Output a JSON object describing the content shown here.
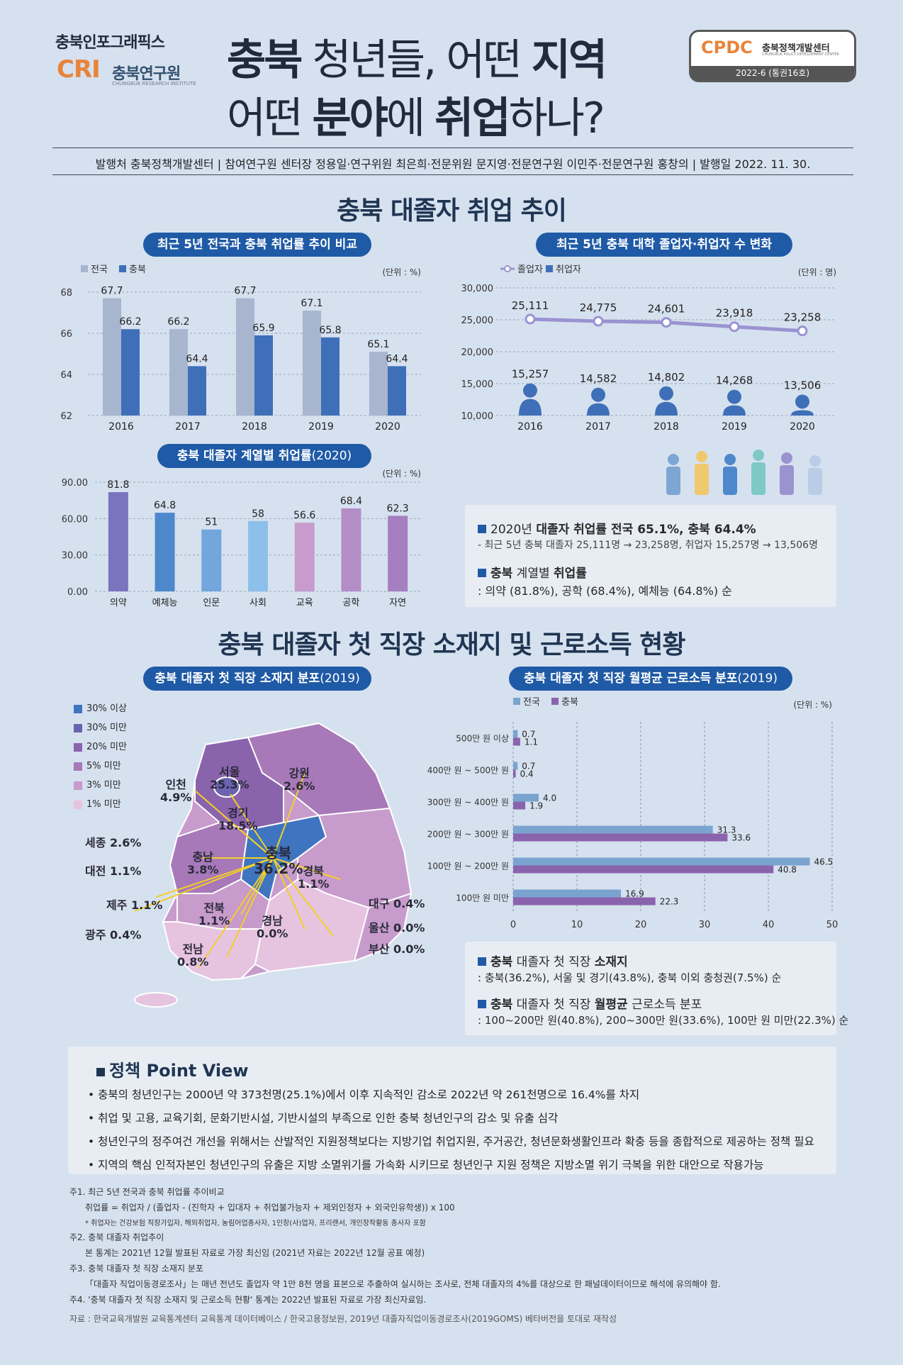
{
  "header": {
    "brand_top": "충북인포그래픽스",
    "brand_cri": "CRI",
    "brand_name": "충북연구원",
    "brand_sub": "CHUNGBUK RESEARCH INSTITUTE",
    "title_line1_a": "충북",
    "title_line1_b": " 청년들, 어떤 ",
    "title_line1_c": "지역",
    "title_line2_a": "어떤 ",
    "title_line2_b": "분야",
    "title_line2_c": "에 ",
    "title_line2_d": "취업",
    "title_line2_e": "하나?",
    "logo_cpdc": "CPDC",
    "logo_name": "충북정책개발센터",
    "logo_sub": "CHUNGBUK POLICY DEVELOPMENT CENTER",
    "logo_issue": "2022-6 (통권16호)",
    "pub_info": "발행처 충북정책개발센터 | 참여연구원 센터장 정용일·연구위원 최은희·전문위원 문지영·전문연구원 이민주·전문연구원 홍창의 | 발행일 2022. 11. 30."
  },
  "section1": {
    "title": "충북 대졸자 취업 추이",
    "chart1_title": "최근 5년 전국과 충북 취업률 추이 비교",
    "chart2_title": "최근 5년 충북 대학 졸업자·취업자 수 변화",
    "chart3_title": "충북 대졸자 계열별 취업률",
    "chart3_year": "(2020)",
    "summary": {
      "line1_a": "2020년 ",
      "line1_b": "대졸자 취업률 전국 65.1%, 충북 64.4%",
      "line2": "- 최근 5년 충북 대졸자 25,111명 → 23,258명, 취업자 15,257명 → 13,506명",
      "line3_a": "충북",
      "line3_b": " 계열별 ",
      "line3_c": "취업률",
      "line4": ": 의약 (81.8%), 공학 (68.4%), 예체능 (64.8%) 순"
    }
  },
  "section2": {
    "title": "충북 대졸자 첫 직장 소재지 및 근로소득 현황",
    "map_title": "충북 대졸자 첫 직장 소재지 분포",
    "map_year": "(2019)",
    "chart4_title": "충북 대졸자 첫 직장 월평균 근로소득 분포",
    "chart4_year": "(2019)",
    "map_legend": [
      "30% 이상",
      "30% 미만",
      "20% 미만",
      "5% 미만",
      "3% 미만",
      "1% 미만"
    ],
    "map_legend_colors": [
      "#3f74c0",
      "#6a63b0",
      "#8a63ad",
      "#a779b8",
      "#c79bcb",
      "#e6c4e0"
    ],
    "map_labels": [
      {
        "name": "서울",
        "value": "25.3%"
      },
      {
        "name": "인천",
        "value": "4.9%"
      },
      {
        "name": "강원",
        "value": "2.6%"
      },
      {
        "name": "경기",
        "value": "18.5%"
      },
      {
        "name": "세종",
        "value": "2.6%"
      },
      {
        "name": "충남",
        "value": "3.8%"
      },
      {
        "name": "충북",
        "value": "36.2%"
      },
      {
        "name": "대전",
        "value": "1.1%"
      },
      {
        "name": "경북",
        "value": "1.1%"
      },
      {
        "name": "제주",
        "value": "1.1%"
      },
      {
        "name": "전북",
        "value": "1.1%"
      },
      {
        "name": "대구",
        "value": "0.4%"
      },
      {
        "name": "울산",
        "value": "0.0%"
      },
      {
        "name": "광주",
        "value": "0.4%"
      },
      {
        "name": "경남",
        "value": "0.0%"
      },
      {
        "name": "부산",
        "value": "0.0%"
      },
      {
        "name": "전남",
        "value": "0.8%"
      }
    ],
    "summary": {
      "line1_a": "충북",
      "line1_b": " 대졸자 첫 직장 ",
      "line1_c": "소재지",
      "line2": ": 충북(36.2%), 서울 및 경기(43.8%), 충북 이외 충청권(7.5%) 순",
      "line3_a": "충북",
      "line3_b": " 대졸자 첫 직장 ",
      "line3_c": "월평균",
      "line3_d": " 근로소득 분포",
      "line4": ": 100~200만 원(40.8%), 200~300만 원(33.6%), 100만 원 미만(22.3%) 순"
    }
  },
  "policy": {
    "title": "정책 Point View",
    "items": [
      "충북의 청년인구는 2000년 약 373천명(25.1%)에서 이후 지속적인 감소로 2022년 약 261천명으로 16.4%를 차지",
      "취업 및 고용, 교육기회, 문화기반시설, 기반시설의 부족으로 인한 충북 청년인구의 감소 및 유출 심각",
      "청년인구의 정주여건 개선을 위해서는 산발적인 지원정책보다는 지방기업 취업지원, 주거공간, 청년문화생활인프라 확충 등을 종합적으로 제공하는 정책 필요",
      "지역의 핵심 인적자본인 청년인구의 유출은 지방 소멸위기를 가속화 시키므로 청년인구 지원 정책은 지방소멸 위기 극복을 위한 대안으로 작용가능"
    ]
  },
  "notes": [
    "주1. 최근 5년 전국과 충북 취업률 추이비교",
    "취업률 = 취업자 / (졸업자 - (진학자 + 입대자 + 취업불가능자 + 제외인정자 + 외국인유학생)) x 100",
    "* 취업자는 건강보험 직장가입자, 해외취업자, 농림어업종사자, 1인창(사)업자, 프리랜서, 개인창작활동 종사자 포함",
    "주2. 충북 대졸자 취업추이",
    "본 통계는 2021년 12월 발표된 자료로 가장 최신임 (2021년 자료는 2022년 12월 공표 예정)",
    "주3. 충북 대졸자 첫 직장 소재지 분포",
    "「대졸자 직업이동경로조사」는 매년 전년도 졸업자 약 1만 8천 명을 표본으로 추출하여 실시하는 조사로, 전체 대졸자의 4%를 대상으로 한 패널데이터이므로 해석에 유의해야 함.",
    "주4. '충북 대졸자 첫 직장 소재지 및 근로소득 현황' 통계는 2022년 발표된 자료로 가장 최신자료임.",
    "자료 : 한국교육개발원 교육통계센터 교육통계 데이터베이스 / 한국고용정보원, 2019년 대졸자직업이동경로조사(2019GOMS) 베타버전을 토대로 재작성"
  ],
  "chart_data": [
    {
      "type": "bar",
      "title": "최근 5년 전국과 충북 취업률 추이 비교",
      "unit": "(단위 : %)",
      "categories": [
        "2016",
        "2017",
        "2018",
        "2019",
        "2020"
      ],
      "series": [
        {
          "name": "전국",
          "values": [
            67.7,
            66.2,
            67.7,
            67.1,
            65.1
          ],
          "color": "#a7b5cf"
        },
        {
          "name": "충북",
          "values": [
            66.2,
            64.4,
            65.9,
            65.8,
            64.4
          ],
          "color": "#3f6fb8"
        }
      ],
      "ylim": [
        62,
        68
      ],
      "yticks": [
        "62",
        "64",
        "66",
        "68"
      ]
    },
    {
      "type": "line",
      "title": "최근 5년 충북 대학 졸업자·취업자 수 변화",
      "unit": "(단위 : 명)",
      "categories": [
        "2016",
        "2017",
        "2018",
        "2019",
        "2020"
      ],
      "series": [
        {
          "name": "졸업자",
          "values": [
            25111,
            24775,
            24601,
            23918,
            23258
          ],
          "color": "#9a93d0"
        },
        {
          "name": "취업자",
          "values": [
            15257,
            14582,
            14802,
            14268,
            13506
          ],
          "color": "#3f6fb8"
        }
      ],
      "value_labels": {
        "졸업자": [
          "25,111",
          "24,775",
          "24,601",
          "23,918",
          "23,258"
        ],
        "취업자": [
          "15,257",
          "14,582",
          "14,802",
          "14,268",
          "13,506"
        ]
      },
      "ylim": [
        10000,
        30000
      ],
      "yticks": [
        "10,000",
        "15,000",
        "20,000",
        "25,000",
        "30,000"
      ]
    },
    {
      "type": "bar",
      "title": "충북 대졸자 계열별 취업률 (2020)",
      "unit": "(단위 : %)",
      "categories": [
        "의약",
        "예체능",
        "인문",
        "사회",
        "교육",
        "공학",
        "자연"
      ],
      "values": [
        81.8,
        64.8,
        51,
        58,
        56.6,
        68.4,
        62.3
      ],
      "value_labels": [
        "81.8",
        "64.8",
        "51",
        "58",
        "56.6",
        "68.4",
        "62.3"
      ],
      "colors": [
        "#7a74bf",
        "#4d88cc",
        "#72a6dd",
        "#8cc0ea",
        "#c79bcb",
        "#b48dc6",
        "#a67fc0"
      ],
      "ylim": [
        0,
        90
      ],
      "yticks": [
        "0.00",
        "30.00",
        "60.00",
        "90.00"
      ]
    },
    {
      "type": "bar",
      "orientation": "horizontal",
      "title": "충북 대졸자 첫 직장 월평균 근로소득 분포 (2019)",
      "unit": "(단위 : %)",
      "categories": [
        "500만 원 이상",
        "400만 원 ~ 500만 원",
        "300만 원 ~ 400만 원",
        "200만 원 ~ 300만 원",
        "100만 원 ~ 200만 원",
        "100만 원 미만"
      ],
      "series": [
        {
          "name": "전국",
          "values": [
            0.7,
            0.7,
            4.0,
            31.3,
            46.5,
            16.9
          ],
          "color": "#7ba3cf"
        },
        {
          "name": "충북",
          "values": [
            1.1,
            0.4,
            1.9,
            33.6,
            40.8,
            22.3
          ],
          "color": "#8a63ad"
        }
      ],
      "value_labels": {
        "전국": [
          "0.7",
          "0.7",
          "4.0",
          "31.3",
          "46.5",
          "16.9"
        ],
        "충북": [
          "1.1",
          "0.4",
          "1.9",
          "33.6",
          "40.8",
          "22.3"
        ]
      },
      "xlim": [
        0,
        50
      ],
      "xticks": [
        "0",
        "10",
        "20",
        "30",
        "40",
        "50"
      ]
    }
  ]
}
